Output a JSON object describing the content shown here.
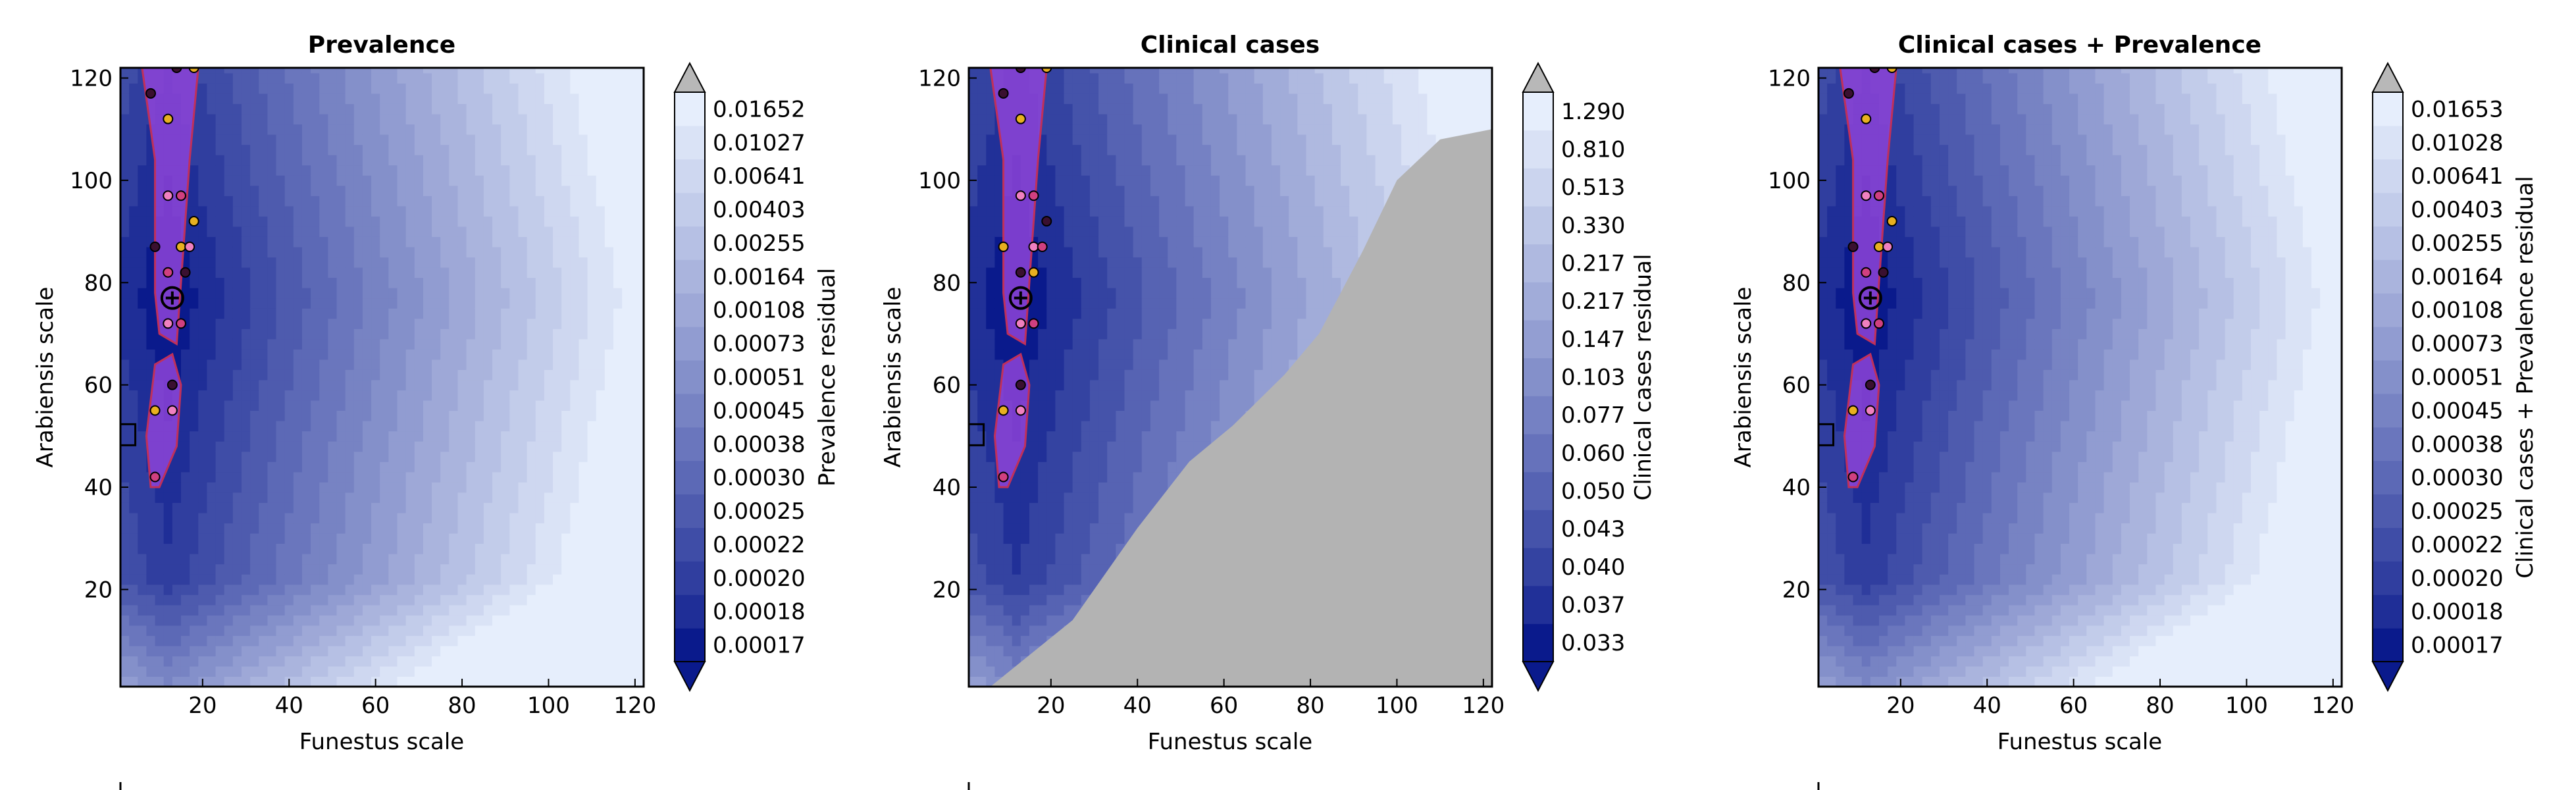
{
  "chart_data": [
    {
      "type": "heatmap",
      "panel": "prevalence",
      "title": "Prevalence",
      "xlabel": "Funestus scale",
      "ylabel": "Arabiensis scale",
      "xlim": [
        1,
        122
      ],
      "ylim": [
        1,
        122
      ],
      "xticks": [
        "20",
        "40",
        "60",
        "80",
        "100",
        "120"
      ],
      "yticks": [
        "20",
        "40",
        "60",
        "80",
        "100",
        "120"
      ],
      "colorbar_label": "Prevalence residual",
      "colorbar_levels": [
        "0.00017",
        "0.00018",
        "0.00020",
        "0.00022",
        "0.00025",
        "0.00030",
        "0.00038",
        "0.00045",
        "0.00051",
        "0.00073",
        "0.00108",
        "0.00164",
        "0.00255",
        "0.00403",
        "0.00641",
        "0.01027",
        "0.01652"
      ],
      "best_fit_marker": {
        "x": 13,
        "y": 77
      },
      "reference_square": {
        "x": 2,
        "y": 50
      },
      "sample_points": [
        {
          "x": 8,
          "y": 117
        },
        {
          "x": 12,
          "y": 112
        },
        {
          "x": 12,
          "y": 97
        },
        {
          "x": 15,
          "y": 97
        },
        {
          "x": 9,
          "y": 87
        },
        {
          "x": 15,
          "y": 87
        },
        {
          "x": 17,
          "y": 87
        },
        {
          "x": 12,
          "y": 82
        },
        {
          "x": 16,
          "y": 82
        },
        {
          "x": 18,
          "y": 92
        },
        {
          "x": 12,
          "y": 72
        },
        {
          "x": 15,
          "y": 72
        },
        {
          "x": 13,
          "y": 60
        },
        {
          "x": 9,
          "y": 55
        },
        {
          "x": 13,
          "y": 55
        },
        {
          "x": 9,
          "y": 42
        },
        {
          "x": 14,
          "y": 122
        },
        {
          "x": 18,
          "y": 122
        }
      ],
      "legend_placement": "below"
    },
    {
      "type": "heatmap",
      "panel": "clinical",
      "title": "Clinical cases",
      "xlabel": "Funestus scale",
      "ylabel": "Arabiensis scale",
      "xlim": [
        1,
        122
      ],
      "ylim": [
        1,
        122
      ],
      "xticks": [
        "20",
        "40",
        "60",
        "80",
        "100",
        "120"
      ],
      "yticks": [
        "20",
        "40",
        "60",
        "80",
        "100",
        "120"
      ],
      "colorbar_label": "Clinical cases residual",
      "colorbar_levels": [
        "0.033",
        "0.037",
        "0.040",
        "0.043",
        "0.050",
        "0.060",
        "0.077",
        "0.103",
        "0.147",
        "0.217",
        "0.217",
        "0.330",
        "0.513",
        "0.810",
        "1.290"
      ],
      "best_fit_marker": {
        "x": 13,
        "y": 77
      },
      "reference_square": {
        "x": 2,
        "y": 50
      },
      "sample_points": [
        {
          "x": 9,
          "y": 117
        },
        {
          "x": 13,
          "y": 112
        },
        {
          "x": 13,
          "y": 97
        },
        {
          "x": 16,
          "y": 97
        },
        {
          "x": 19,
          "y": 92
        },
        {
          "x": 9,
          "y": 87
        },
        {
          "x": 16,
          "y": 87
        },
        {
          "x": 18,
          "y": 87
        },
        {
          "x": 13,
          "y": 82
        },
        {
          "x": 16,
          "y": 82
        },
        {
          "x": 13,
          "y": 72
        },
        {
          "x": 16,
          "y": 72
        },
        {
          "x": 13,
          "y": 60
        },
        {
          "x": 9,
          "y": 55
        },
        {
          "x": 13,
          "y": 55
        },
        {
          "x": 9,
          "y": 42
        },
        {
          "x": 13,
          "y": 122
        },
        {
          "x": 19,
          "y": 122
        }
      ],
      "legend_placement": "below"
    },
    {
      "type": "heatmap",
      "panel": "combined",
      "title": "Clinical cases + Prevalence",
      "xlabel": "Funestus scale",
      "ylabel": "Arabiensis scale",
      "xlim": [
        1,
        122
      ],
      "ylim": [
        1,
        122
      ],
      "xticks": [
        "20",
        "40",
        "60",
        "80",
        "100",
        "120"
      ],
      "yticks": [
        "20",
        "40",
        "60",
        "80",
        "100",
        "120"
      ],
      "colorbar_label": "Clinical cases + Prevalence residual",
      "colorbar_levels": [
        "0.00017",
        "0.00018",
        "0.00020",
        "0.00022",
        "0.00025",
        "0.00030",
        "0.00038",
        "0.00045",
        "0.00051",
        "0.00073",
        "0.00108",
        "0.00164",
        "0.00255",
        "0.00403",
        "0.00641",
        "0.01028",
        "0.01653"
      ],
      "best_fit_marker": {
        "x": 13,
        "y": 77
      },
      "reference_square": {
        "x": 2,
        "y": 50
      },
      "sample_points": [
        {
          "x": 8,
          "y": 117
        },
        {
          "x": 12,
          "y": 112
        },
        {
          "x": 12,
          "y": 97
        },
        {
          "x": 15,
          "y": 97
        },
        {
          "x": 9,
          "y": 87
        },
        {
          "x": 15,
          "y": 87
        },
        {
          "x": 17,
          "y": 87
        },
        {
          "x": 12,
          "y": 82
        },
        {
          "x": 16,
          "y": 82
        },
        {
          "x": 18,
          "y": 92
        },
        {
          "x": 12,
          "y": 72
        },
        {
          "x": 15,
          "y": 72
        },
        {
          "x": 13,
          "y": 60
        },
        {
          "x": 9,
          "y": 55
        },
        {
          "x": 13,
          "y": 55
        },
        {
          "x": 9,
          "y": 42
        },
        {
          "x": 14,
          "y": 122
        },
        {
          "x": 18,
          "y": 122
        }
      ],
      "legend_placement": "below"
    }
  ],
  "colors": {
    "dark_blue": "#0a1a8c",
    "light_blue": "#e6eefc",
    "grey_region": "#b3b3b3",
    "purple_fill": "#8e44d8",
    "contour_red": "#c0305a",
    "contour_magenta": "#e040c8"
  }
}
